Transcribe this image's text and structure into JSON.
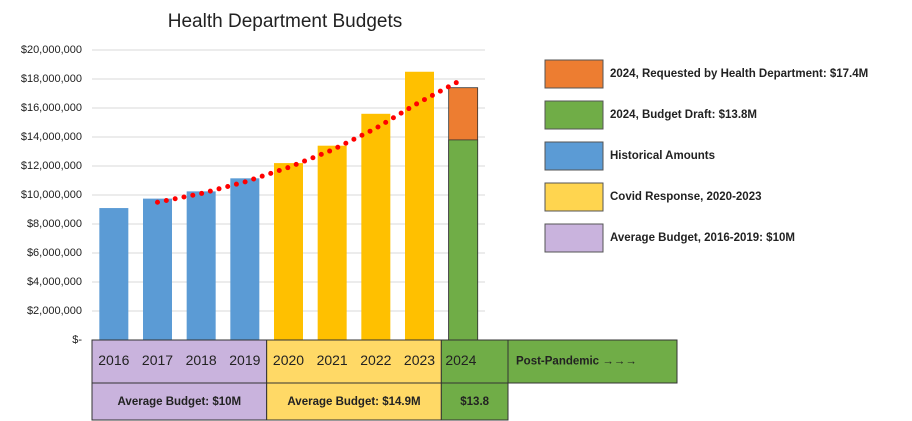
{
  "chart_data": {
    "type": "bar",
    "title": "Health Department Budgets",
    "categories": [
      "2016",
      "2017",
      "2018",
      "2019",
      "2020",
      "2021",
      "2022",
      "2023",
      "2024"
    ],
    "series": [
      {
        "name": "2024, Requested by Health Department: $17.4M",
        "color": "#ed7d31",
        "values": [
          null,
          null,
          null,
          null,
          null,
          null,
          null,
          null,
          17400000
        ]
      },
      {
        "name": "2024, Budget Draft: $13.8M",
        "color": "#70ad47",
        "values": [
          null,
          null,
          null,
          null,
          null,
          null,
          null,
          null,
          13800000
        ]
      },
      {
        "name": "Historical Amounts",
        "color": "#5b9bd5",
        "values": [
          9100000,
          9750000,
          10250000,
          11150000,
          null,
          null,
          null,
          null,
          null
        ]
      },
      {
        "name": "Covid Response, 2020-2023",
        "color": "#ffc000",
        "legend_color": "#ffd54f",
        "values": [
          null,
          null,
          null,
          null,
          12200000,
          13400000,
          15600000,
          18500000,
          null
        ]
      },
      {
        "name": "Average Budget, 2016-2019: $10M",
        "color": "#c9b3dd",
        "values": [
          null,
          null,
          null,
          null,
          null,
          null,
          null,
          null,
          null
        ]
      }
    ],
    "trendline": {
      "color": "#ff0000",
      "values": [
        null,
        9500000,
        10100000,
        10900000,
        11900000,
        13100000,
        14600000,
        16400000,
        18000000
      ]
    },
    "ylim": [
      0,
      20000000
    ],
    "yticks": [
      {
        "value": 0,
        "label": "$-"
      },
      {
        "value": 2000000,
        "label": "$2,000,000"
      },
      {
        "value": 4000000,
        "label": "$4,000,000"
      },
      {
        "value": 6000000,
        "label": "$6,000,000"
      },
      {
        "value": 8000000,
        "label": "$8,000,000"
      },
      {
        "value": 10000000,
        "label": "$10,000,000"
      },
      {
        "value": 12000000,
        "label": "$12,000,000"
      },
      {
        "value": 14000000,
        "label": "$14,000,000"
      },
      {
        "value": 16000000,
        "label": "$16,000,000"
      },
      {
        "value": 18000000,
        "label": "$18,000,000"
      },
      {
        "value": 20000000,
        "label": "$20,000,000"
      }
    ],
    "grid": true,
    "groups": [
      {
        "label": "Average Budget: $10M",
        "color": "#c9b3dd",
        "count": 4
      },
      {
        "label": "Average Budget: $14.9M",
        "color": "#ffd966",
        "count": 4
      },
      {
        "label": "$13.8",
        "color": "#70ad47",
        "count": 1
      }
    ],
    "post_label": "Post-Pandemic →→→",
    "post_color": "#70ad47"
  }
}
